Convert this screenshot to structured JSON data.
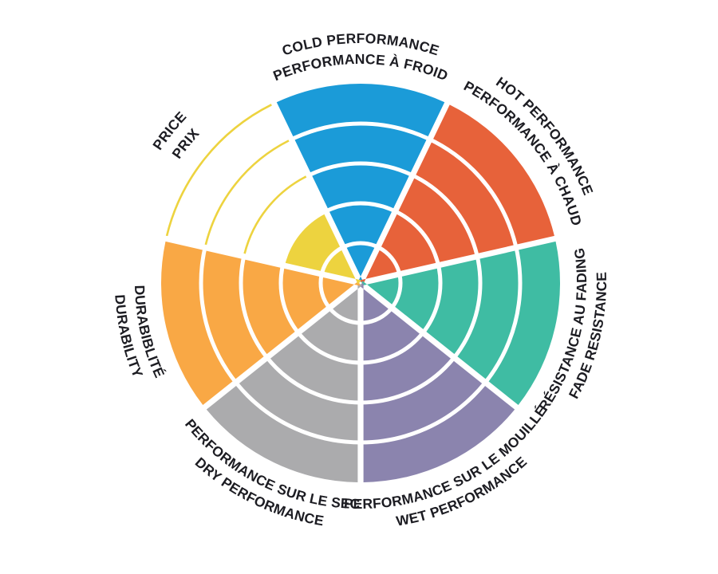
{
  "background_color": "#ffffff",
  "text_color": "#1c1c22",
  "divider_color": "#ffffff",
  "chart_data": {
    "type": "bar",
    "subtype": "polar-rose-rating-wheel",
    "rings": 5,
    "scale_max": 5,
    "grid": "concentric-ring-dividers",
    "legend_position": "none",
    "title": "",
    "sectors": [
      {
        "id": "cold-performance",
        "label_en": "COLD PERFORMANCE",
        "label_fr": "PERFORMANCE À FROID",
        "value": 5,
        "color": "#1b9bd8"
      },
      {
        "id": "hot-performance",
        "label_en": "HOT PERFORMANCE",
        "label_fr": "PERFORMANCE À CHAUD",
        "value": 5,
        "color": "#e7623a"
      },
      {
        "id": "fade-resistance",
        "label_en": "FADE RESISTANCE",
        "label_fr": "RÉSISTANCE AU FADING",
        "value": 5,
        "color": "#3fbca3"
      },
      {
        "id": "wet-performance",
        "label_en": "WET PERFORMANCE",
        "label_fr": "PERFORMANCE SUR LE MOUILLÉ",
        "value": 5,
        "color": "#8b84ae"
      },
      {
        "id": "dry-performance",
        "label_en": "DRY PERFORMANCE",
        "label_fr": "PERFORMANCE SUR LE SEC",
        "value": 5,
        "color": "#ababad"
      },
      {
        "id": "durability",
        "label_en": "DURABILITY",
        "label_fr": "DURABIBLITÉ",
        "value": 5,
        "color": "#f9a845"
      },
      {
        "id": "price",
        "label_en": "PRICE",
        "label_fr": "PRIX",
        "value": 2,
        "color": "#edd33f"
      }
    ]
  }
}
